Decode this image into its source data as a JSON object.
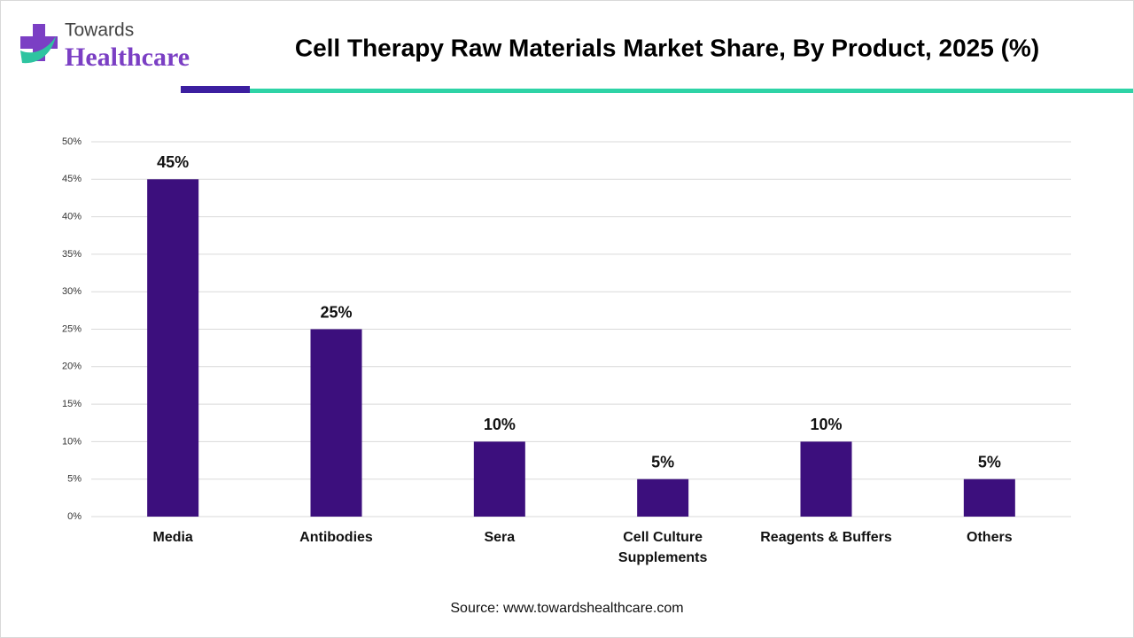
{
  "logo": {
    "line1": "Towards",
    "line2": "Healthcare"
  },
  "chart_data": {
    "type": "bar",
    "title": "Cell Therapy Raw Materials Market Share, By Product, 2025 (%)",
    "categories": [
      "Media",
      "Antibodies",
      "Sera",
      "Cell Culture Supplements",
      "Reagents & Buffers",
      "Others"
    ],
    "values": [
      45,
      25,
      10,
      5,
      10,
      5
    ],
    "value_labels": [
      "45%",
      "25%",
      "10%",
      "5%",
      "10%",
      "5%"
    ],
    "color": "#3c0f7d",
    "ylim": [
      0,
      50
    ],
    "yticks": [
      {
        "value": 0,
        "label": "0%"
      },
      {
        "value": 5,
        "label": "5%"
      },
      {
        "value": 10,
        "label": "10%"
      },
      {
        "value": 15,
        "label": "15%"
      },
      {
        "value": 20,
        "label": "20%"
      },
      {
        "value": 25,
        "label": "25%"
      },
      {
        "value": 30,
        "label": "30%"
      },
      {
        "value": 35,
        "label": "35%"
      },
      {
        "value": 40,
        "label": "40%"
      },
      {
        "value": 45,
        "label": "45%"
      },
      {
        "value": 50,
        "label": "50%"
      }
    ],
    "grid": true
  },
  "source": "Source: www.towardshealthcare.com"
}
